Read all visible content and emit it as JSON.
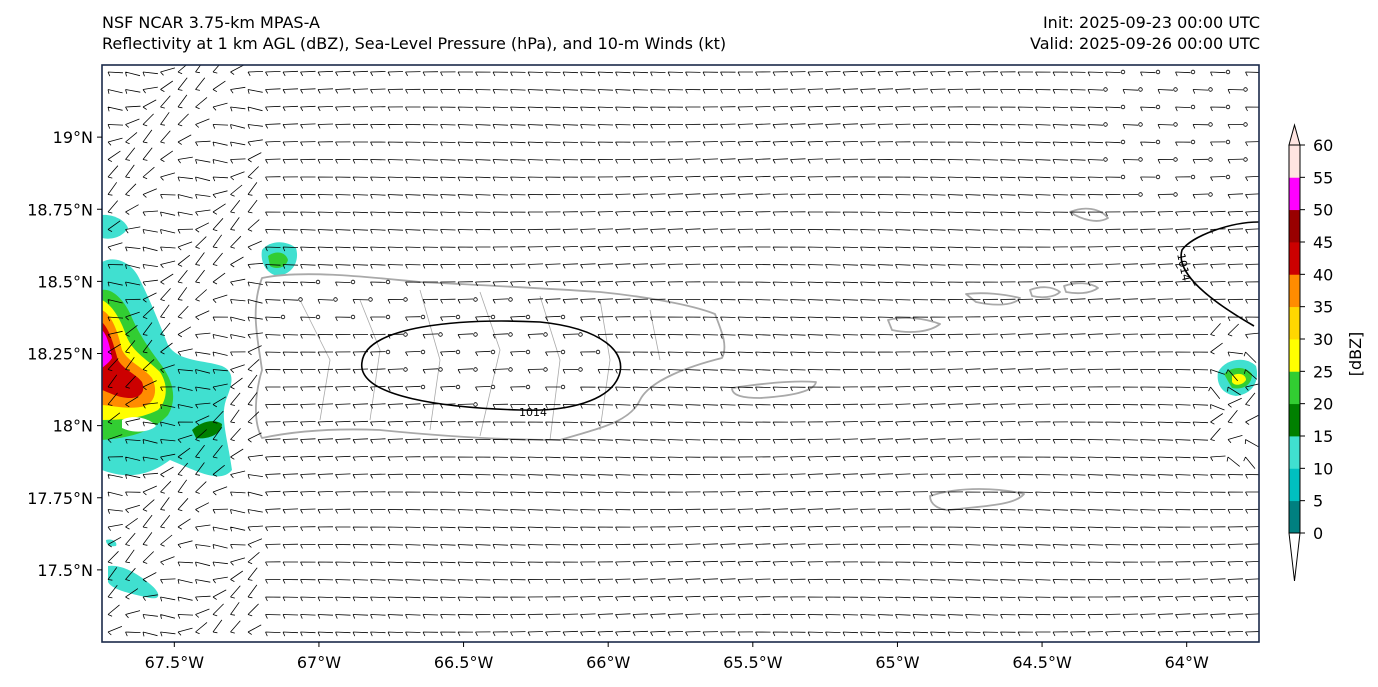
{
  "header": {
    "left_line1": "NSF NCAR 3.75-km MPAS-A",
    "left_line2": "Reflectivity at 1 km AGL (dBZ), Sea-Level Pressure (hPa), and 10-m Winds (kt)",
    "right_line1": "Init: 2025-09-23 00:00 UTC",
    "right_line2": "Valid: 2025-09-26 00:00 UTC"
  },
  "map": {
    "lon_range": [
      -67.75,
      -63.75
    ],
    "lat_range": [
      17.25,
      19.25
    ],
    "x_ticks": [
      "67.5°W",
      "67°W",
      "66.5°W",
      "66°W",
      "65.5°W",
      "65°W",
      "64.5°W",
      "64°W"
    ],
    "x_tick_values": [
      -67.5,
      -67.0,
      -66.5,
      -66.0,
      -65.5,
      -65.0,
      -64.5,
      -64.0
    ],
    "y_ticks": [
      "19°N",
      "18.75°N",
      "18.5°N",
      "18.25°N",
      "18°N",
      "17.75°N",
      "17.5°N"
    ],
    "y_tick_values": [
      19.0,
      18.75,
      18.5,
      18.25,
      18.0,
      17.75,
      17.5
    ],
    "isobar_labels": [
      "1014",
      "1014"
    ],
    "wind_barb_color": "#000000",
    "coastline_color": "#a9a9a9",
    "isobar_color": "#000000"
  },
  "colorbar": {
    "label": "[dBZ]",
    "ticks": [
      "0",
      "5",
      "10",
      "15",
      "20",
      "25",
      "30",
      "35",
      "40",
      "45",
      "50",
      "55",
      "60"
    ],
    "colors": [
      "#008080",
      "#00c0c0",
      "#40e0d0",
      "#008000",
      "#32cd32",
      "#ffff00",
      "#ffd700",
      "#ff8c00",
      "#cc0000",
      "#990000",
      "#ff00ff",
      "#ffe4e1"
    ],
    "under_color": "#ffffff",
    "over_color": "#ffe4e1"
  }
}
